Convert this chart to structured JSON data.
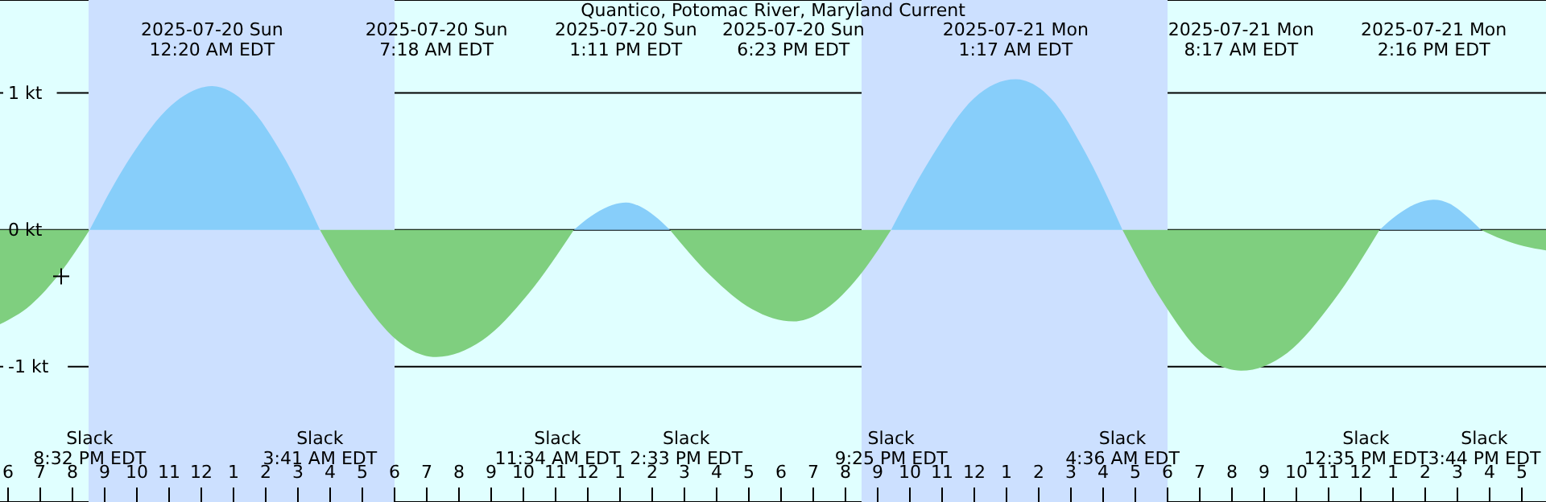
{
  "chart_data": {
    "type": "area",
    "title": "Quantico, Potomac River, Maryland Current",
    "xlim": [
      "2025-07-19T17:45",
      "2025-07-21T17:45"
    ],
    "xticks": [
      {
        "value": "2025-07-19T18:00",
        "label": "6"
      },
      {
        "value": "2025-07-19T19:00",
        "label": "7"
      },
      {
        "value": "2025-07-19T20:00",
        "label": "8"
      },
      {
        "value": "2025-07-19T21:00",
        "label": "9"
      },
      {
        "value": "2025-07-19T22:00",
        "label": "10"
      },
      {
        "value": "2025-07-19T23:00",
        "label": "11"
      },
      {
        "value": "2025-07-20T00:00",
        "label": "12"
      },
      {
        "value": "2025-07-20T01:00",
        "label": "1"
      },
      {
        "value": "2025-07-20T02:00",
        "label": "2"
      },
      {
        "value": "2025-07-20T03:00",
        "label": "3"
      },
      {
        "value": "2025-07-20T04:00",
        "label": "4"
      },
      {
        "value": "2025-07-20T05:00",
        "label": "5"
      },
      {
        "value": "2025-07-20T06:00",
        "label": "6"
      },
      {
        "value": "2025-07-20T07:00",
        "label": "7"
      },
      {
        "value": "2025-07-20T08:00",
        "label": "8"
      },
      {
        "value": "2025-07-20T09:00",
        "label": "9"
      },
      {
        "value": "2025-07-20T10:00",
        "label": "10"
      },
      {
        "value": "2025-07-20T11:00",
        "label": "11"
      },
      {
        "value": "2025-07-20T12:00",
        "label": "12"
      },
      {
        "value": "2025-07-20T13:00",
        "label": "1"
      },
      {
        "value": "2025-07-20T14:00",
        "label": "2"
      },
      {
        "value": "2025-07-20T15:00",
        "label": "3"
      },
      {
        "value": "2025-07-20T16:00",
        "label": "4"
      },
      {
        "value": "2025-07-20T17:00",
        "label": "5"
      },
      {
        "value": "2025-07-20T18:00",
        "label": "6"
      },
      {
        "value": "2025-07-20T19:00",
        "label": "7"
      },
      {
        "value": "2025-07-20T20:00",
        "label": "8"
      },
      {
        "value": "2025-07-20T21:00",
        "label": "9"
      },
      {
        "value": "2025-07-20T22:00",
        "label": "10"
      },
      {
        "value": "2025-07-20T23:00",
        "label": "11"
      },
      {
        "value": "2025-07-21T00:00",
        "label": "12"
      },
      {
        "value": "2025-07-21T01:00",
        "label": "1"
      },
      {
        "value": "2025-07-21T02:00",
        "label": "2"
      },
      {
        "value": "2025-07-21T03:00",
        "label": "3"
      },
      {
        "value": "2025-07-21T04:00",
        "label": "4"
      },
      {
        "value": "2025-07-21T05:00",
        "label": "5"
      },
      {
        "value": "2025-07-21T06:00",
        "label": "6"
      },
      {
        "value": "2025-07-21T07:00",
        "label": "7"
      },
      {
        "value": "2025-07-21T08:00",
        "label": "8"
      },
      {
        "value": "2025-07-21T09:00",
        "label": "9"
      },
      {
        "value": "2025-07-21T10:00",
        "label": "10"
      },
      {
        "value": "2025-07-21T11:00",
        "label": "11"
      },
      {
        "value": "2025-07-21T12:00",
        "label": "12"
      },
      {
        "value": "2025-07-21T13:00",
        "label": "1"
      },
      {
        "value": "2025-07-21T14:00",
        "label": "2"
      },
      {
        "value": "2025-07-21T15:00",
        "label": "3"
      },
      {
        "value": "2025-07-21T16:00",
        "label": "4"
      },
      {
        "value": "2025-07-21T17:00",
        "label": "5"
      }
    ],
    "ylim": [
      -1.99,
      1.68
    ],
    "yticks": [
      {
        "value": -1,
        "label": "-1 kt"
      },
      {
        "value": 0,
        "label": "0 kt"
      },
      {
        "value": 1,
        "label": "1 kt"
      }
    ],
    "grid": "y",
    "bands": [
      {
        "axis": "x",
        "from": "2025-07-19T20:30",
        "to": "2025-07-20T06:00",
        "label": null,
        "color": "#cce0ff"
      },
      {
        "axis": "x",
        "from": "2025-07-20T20:30",
        "to": "2025-07-21T06:00",
        "label": null,
        "color": "#cce0ff"
      }
    ],
    "series": [
      {
        "color": "#87cefa",
        "x": [
          "2025-07-19T20:32",
          "2025-07-19T21:48",
          "2025-07-19T23:04",
          "2025-07-20T00:20",
          "2025-07-20T01:27",
          "2025-07-20T02:34",
          "2025-07-20T03:41",
          "2025-07-20T07:18",
          "2025-07-20T11:34",
          "2025-07-20T12:06",
          "2025-07-20T12:38",
          "2025-07-20T13:11",
          "2025-07-20T13:38",
          "2025-07-20T14:05",
          "2025-07-20T14:33",
          "2025-07-20T18:23",
          "2025-07-20T21:25",
          "2025-07-20T22:43",
          "2025-07-20T23:59",
          "2025-07-21T01:17",
          "2025-07-21T02:23",
          "2025-07-21T03:29",
          "2025-07-21T04:36",
          "2025-07-21T08:17",
          "2025-07-21T12:35",
          "2025-07-21T13:08",
          "2025-07-21T13:43",
          "2025-07-21T14:16",
          "2025-07-21T14:46",
          "2025-07-21T15:14",
          "2025-07-21T15:44"
        ],
        "values": [
          0,
          0.53,
          0.91,
          1.05,
          0.91,
          0.53,
          0,
          null,
          0,
          0.1,
          0.17,
          0.2,
          0.17,
          0.1,
          0,
          null,
          0,
          0.55,
          0.96,
          1.1,
          0.96,
          0.55,
          0,
          null,
          0,
          0.11,
          0.19,
          0.22,
          0.19,
          0.11,
          0
        ]
      },
      {
        "color": "#7fcf7f",
        "x": [
          "2025-07-19T17:45",
          "2025-07-19T18:42",
          "2025-07-19T19:36",
          "2025-07-19T20:32",
          "2025-07-20T00:20",
          "2025-07-20T03:41",
          "2025-07-20T04:53",
          "2025-07-20T06:05",
          "2025-07-20T07:18",
          "2025-07-20T08:43",
          "2025-07-20T10:09",
          "2025-07-20T11:34",
          "2025-07-20T13:11",
          "2025-07-20T14:33",
          "2025-07-20T15:50",
          "2025-07-20T17:06",
          "2025-07-20T18:23",
          "2025-07-20T19:23",
          "2025-07-20T20:25",
          "2025-07-20T21:25",
          "2025-07-21T01:17",
          "2025-07-21T04:36",
          "2025-07-21T05:50",
          "2025-07-21T07:03",
          "2025-07-21T08:17",
          "2025-07-21T09:43",
          "2025-07-21T11:09",
          "2025-07-21T12:35",
          "2025-07-21T14:16",
          "2025-07-21T15:44",
          "2025-07-21T16:24",
          "2025-07-21T17:04",
          "2025-07-21T17:45"
        ],
        "values": [
          -0.69,
          -0.55,
          -0.32,
          0,
          null,
          0,
          -0.47,
          -0.81,
          -0.93,
          -0.81,
          -0.47,
          0,
          null,
          0,
          -0.34,
          -0.58,
          -0.67,
          -0.58,
          -0.34,
          0,
          null,
          0,
          -0.52,
          -0.9,
          -1.03,
          -0.9,
          -0.52,
          0,
          null,
          0,
          -0.07,
          -0.12,
          -0.15
        ]
      },
      {
        "type": "scatter",
        "color": "#000000",
        "marker": "cross",
        "x": [
          "2025-07-19T19:39"
        ],
        "values": [
          -0.34
        ]
      }
    ],
    "annotations": [
      "2025-07-20 Sun\n12:20 AM EDT",
      "2025-07-20 Sun\n7:18 AM EDT",
      "2025-07-20 Sun\n1:11 PM EDT",
      "2025-07-20 Sun\n6:23 PM EDT",
      "2025-07-21 Mon\n1:17 AM EDT",
      "2025-07-21 Mon\n8:17 AM EDT",
      "2025-07-21 Mon\n2:16 PM EDT",
      "Slack\n8:32 PM EDT",
      "Slack\n3:41 AM EDT",
      "Slack\n11:34 AM EDT",
      "Slack\n2:33 PM EDT",
      "Slack\n9:25 PM EDT",
      "Slack\n4:36 AM EDT",
      "Slack\n12:35 PM EDT",
      "Slack\n3:44 PM EDT"
    ]
  }
}
